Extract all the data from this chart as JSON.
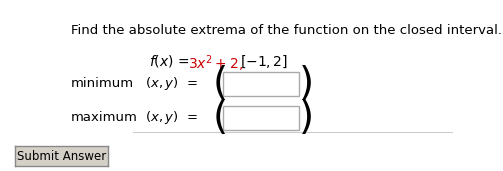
{
  "title": "Find the absolute extrema of the function on the closed interval.",
  "minimum_label": "minimum",
  "maximum_label": "maximum",
  "bg_color": "#ffffff",
  "title_fontsize": 9.5,
  "label_fontsize": 9.5,
  "math_fontsize": 10,
  "text_color": "#000000",
  "red_color": "#cc0000",
  "box_edge_color": "#aaaaaa",
  "button_color": "#d4d0c8",
  "button_edge_color": "#888888",
  "line_color": "#cccccc"
}
